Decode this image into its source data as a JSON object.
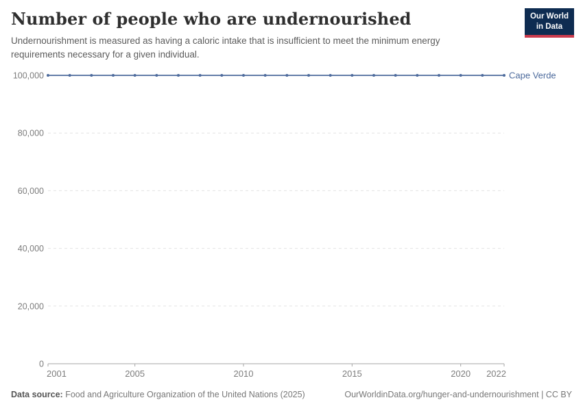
{
  "header": {
    "title": "Number of people who are undernourished",
    "subtitle": "Undernourishment is measured as having a caloric intake that is insufficient to meet the minimum energy requirements necessary for a given individual."
  },
  "logo": {
    "line1": "Our World",
    "line2": "in Data"
  },
  "colors": {
    "series_blue": "#4c6a9c",
    "grid": "#e3e3e3",
    "axis": "#a5a5a5",
    "tick_text": "#7c7c7c",
    "logo_bg": "#0e2c51",
    "logo_accent": "#cb3b4d"
  },
  "chart_data": {
    "type": "line",
    "title": "Number of people who are undernourished",
    "subtitle": "Undernourishment is measured as having a caloric intake that is insufficient to meet the minimum energy requirements necessary for a given individual.",
    "xlabel": "",
    "ylabel": "",
    "x": [
      2001,
      2002,
      2003,
      2004,
      2005,
      2006,
      2007,
      2008,
      2009,
      2010,
      2011,
      2012,
      2013,
      2014,
      2015,
      2016,
      2017,
      2018,
      2019,
      2020,
      2021,
      2022
    ],
    "series": [
      {
        "name": "Cape Verde",
        "color": "#4c6a9c",
        "values": [
          100000,
          100000,
          100000,
          100000,
          100000,
          100000,
          100000,
          100000,
          100000,
          100000,
          100000,
          100000,
          100000,
          100000,
          100000,
          100000,
          100000,
          100000,
          100000,
          100000,
          100000,
          100000
        ]
      }
    ],
    "xlim": [
      2001,
      2022
    ],
    "ylim": [
      0,
      100000
    ],
    "xticks": [
      2001,
      2005,
      2010,
      2015,
      2020,
      2022
    ],
    "yticks": [
      {
        "value": 0,
        "label": "0"
      },
      {
        "value": 20000,
        "label": "20,000"
      },
      {
        "value": 40000,
        "label": "40,000"
      },
      {
        "value": 60000,
        "label": "60,000"
      },
      {
        "value": 80000,
        "label": "80,000"
      },
      {
        "value": 100000,
        "label": "100,000"
      }
    ],
    "grid": "horizontal-dashed",
    "legend": "end-of-line-label"
  },
  "footer": {
    "datasource_label": "Data source:",
    "datasource_text": " Food and Agriculture Organization of the United Nations (2025)",
    "attribution": "OurWorldinData.org/hunger-and-undernourishment | CC BY"
  }
}
